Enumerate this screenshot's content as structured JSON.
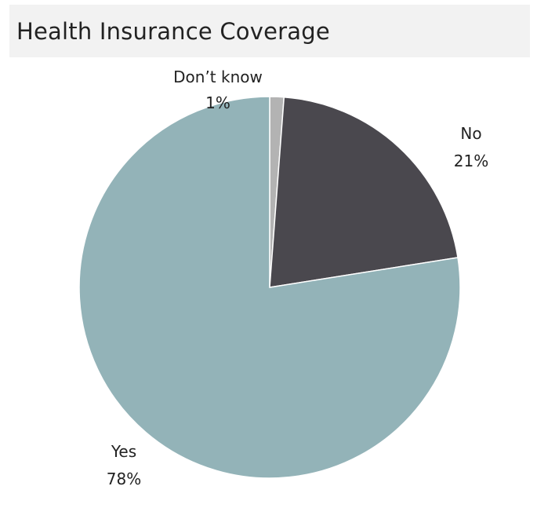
{
  "chart_data": {
    "type": "pie",
    "title": "Health Insurance Coverage",
    "slices": [
      {
        "label": "Don’t know",
        "value_text": "1%",
        "value": 1.2,
        "color": "#b3b3b3"
      },
      {
        "label": "No",
        "value_text": "21%",
        "value": 21.3,
        "color": "#4a484e"
      },
      {
        "label": "Yes",
        "value_text": "78%",
        "value": 77.5,
        "color": "#93b3b8"
      }
    ],
    "start_angle_deg": 0,
    "direction": "clockwise",
    "legend": "none"
  }
}
